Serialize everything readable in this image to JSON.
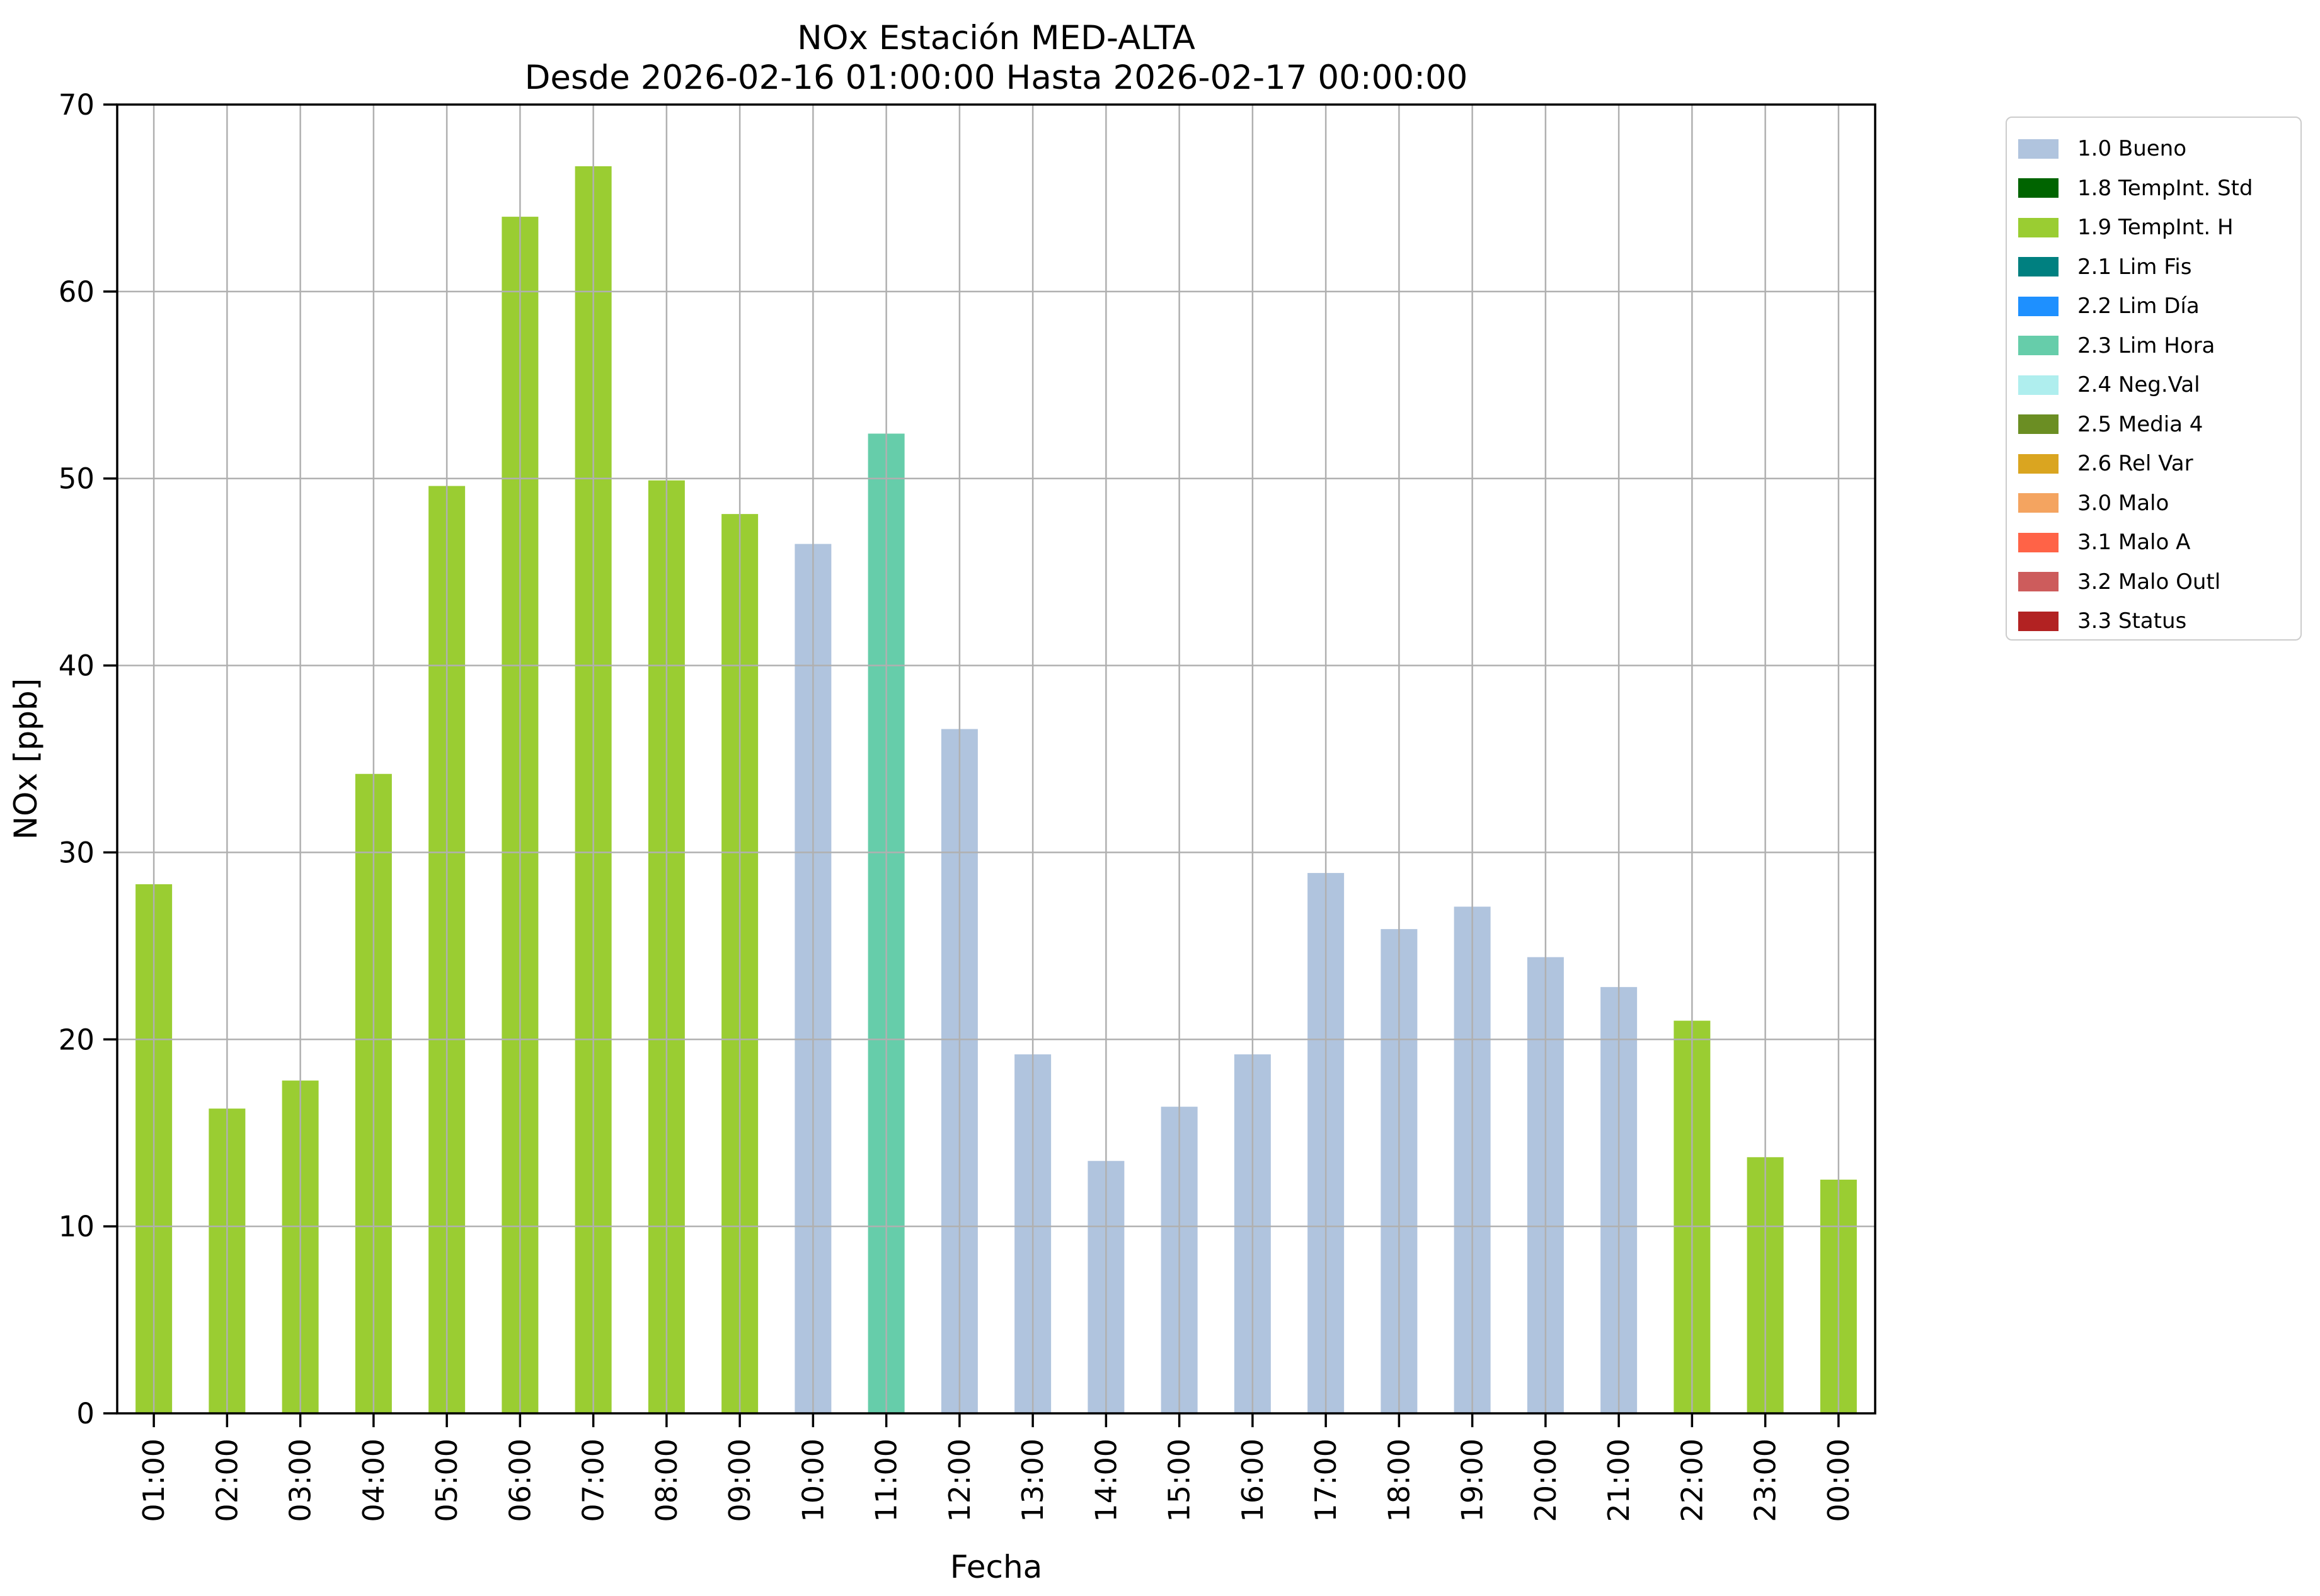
{
  "chart_data": {
    "type": "bar",
    "title": "NOx Estación MED-ALTA",
    "subtitle": "Desde 2026-02-16 01:00:00 Hasta 2026-02-17 00:00:00",
    "xlabel": "Fecha",
    "ylabel": "NOx [ppb]",
    "ylim": [
      0,
      70
    ],
    "yticks": [
      0,
      10,
      20,
      30,
      40,
      50,
      60,
      70
    ],
    "grid": true,
    "grid_over_bars": true,
    "legend_position": "outside-upper-right",
    "categories": [
      "01:00",
      "02:00",
      "03:00",
      "04:00",
      "05:00",
      "06:00",
      "07:00",
      "08:00",
      "09:00",
      "10:00",
      "11:00",
      "12:00",
      "13:00",
      "14:00",
      "15:00",
      "16:00",
      "17:00",
      "18:00",
      "19:00",
      "20:00",
      "21:00",
      "22:00",
      "23:00",
      "00:00"
    ],
    "values": [
      28.3,
      16.3,
      17.8,
      34.2,
      49.6,
      64.0,
      66.7,
      49.9,
      48.1,
      46.5,
      52.4,
      36.6,
      19.2,
      13.5,
      16.4,
      19.2,
      28.9,
      25.9,
      27.1,
      24.4,
      22.8,
      21.0,
      13.7,
      12.5
    ],
    "bar_status": [
      "1.9",
      "1.9",
      "1.9",
      "1.9",
      "1.9",
      "1.9",
      "1.9",
      "1.9",
      "1.9",
      "1.0",
      "2.3",
      "1.0",
      "1.0",
      "1.0",
      "1.0",
      "1.0",
      "1.0",
      "1.0",
      "1.0",
      "1.0",
      "1.0",
      "1.9",
      "1.9",
      "1.9"
    ],
    "status_colors": {
      "1.0": "#b0c4de",
      "1.8": "#006400",
      "1.9": "#9acd32",
      "2.1": "#008080",
      "2.2": "#1e90ff",
      "2.3": "#66cdaa",
      "2.4": "#afeeee",
      "2.5": "#6b8e23",
      "2.6": "#daa520",
      "3.0": "#f4a460",
      "3.1": "#ff6347",
      "3.2": "#cd5c5c",
      "3.3": "#b22222"
    },
    "legend": [
      {
        "label": "1.0 Bueno",
        "color": "#b0c4de"
      },
      {
        "label": "1.8 TempInt. Std",
        "color": "#006400"
      },
      {
        "label": "1.9 TempInt. H",
        "color": "#9acd32"
      },
      {
        "label": "2.1 Lim Fis",
        "color": "#008080"
      },
      {
        "label": "2.2 Lim Día",
        "color": "#1e90ff"
      },
      {
        "label": "2.3 Lim Hora",
        "color": "#66cdaa"
      },
      {
        "label": "2.4 Neg.Val",
        "color": "#afeeee"
      },
      {
        "label": "2.5 Media 4",
        "color": "#6b8e23"
      },
      {
        "label": "2.6 Rel Var",
        "color": "#daa520"
      },
      {
        "label": "3.0 Malo",
        "color": "#f4a460"
      },
      {
        "label": "3.1 Malo A",
        "color": "#ff6347"
      },
      {
        "label": "3.2 Malo Outl",
        "color": "#cd5c5c"
      },
      {
        "label": "3.3 Status",
        "color": "#b22222"
      }
    ]
  },
  "colors": {
    "background": "#ffffff",
    "grid": "#b0b0b0",
    "axis": "#000000",
    "legend_border": "#cccccc"
  }
}
